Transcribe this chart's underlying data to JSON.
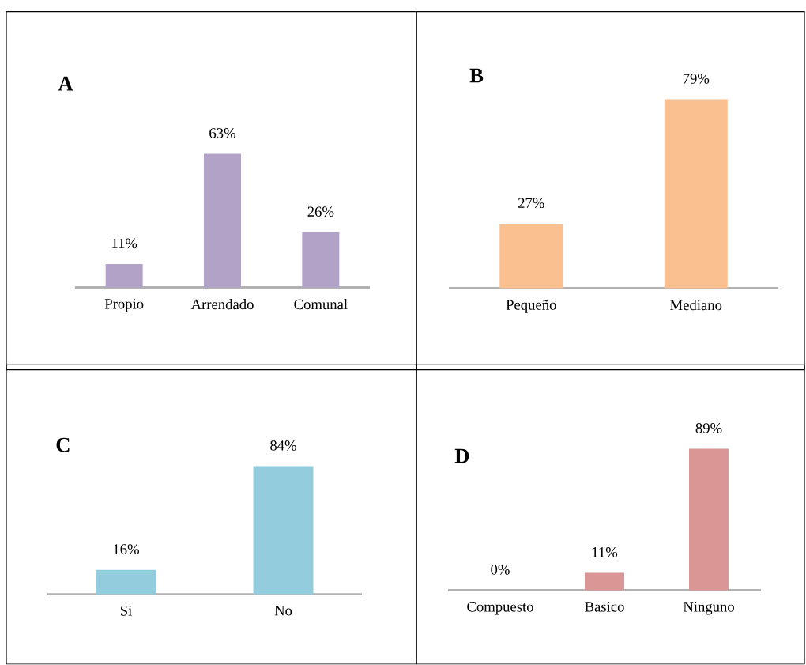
{
  "chart_data": [
    {
      "type": "bar",
      "title": "A",
      "categories": [
        "Propio",
        "Arrendado",
        "Comunal"
      ],
      "values": [
        11,
        63,
        26
      ],
      "value_labels": [
        "11%",
        "63%",
        "26%"
      ],
      "color": "#b3a2c7"
    },
    {
      "type": "bar",
      "title": "B",
      "categories": [
        "Pequeño",
        "Mediano"
      ],
      "values": [
        27,
        79
      ],
      "value_labels": [
        "27%",
        "79%"
      ],
      "color": "#fac090"
    },
    {
      "type": "bar",
      "title": "C",
      "categories": [
        "Si",
        "No"
      ],
      "values": [
        16,
        84
      ],
      "value_labels": [
        "16%",
        "84%"
      ],
      "color": "#93cddd"
    },
    {
      "type": "bar",
      "title": "D",
      "categories": [
        "Compuesto",
        "Basico",
        "Ninguno"
      ],
      "values": [
        0,
        11,
        89
      ],
      "value_labels": [
        "0%",
        "11%",
        "89%"
      ],
      "color": "#d99694"
    }
  ]
}
